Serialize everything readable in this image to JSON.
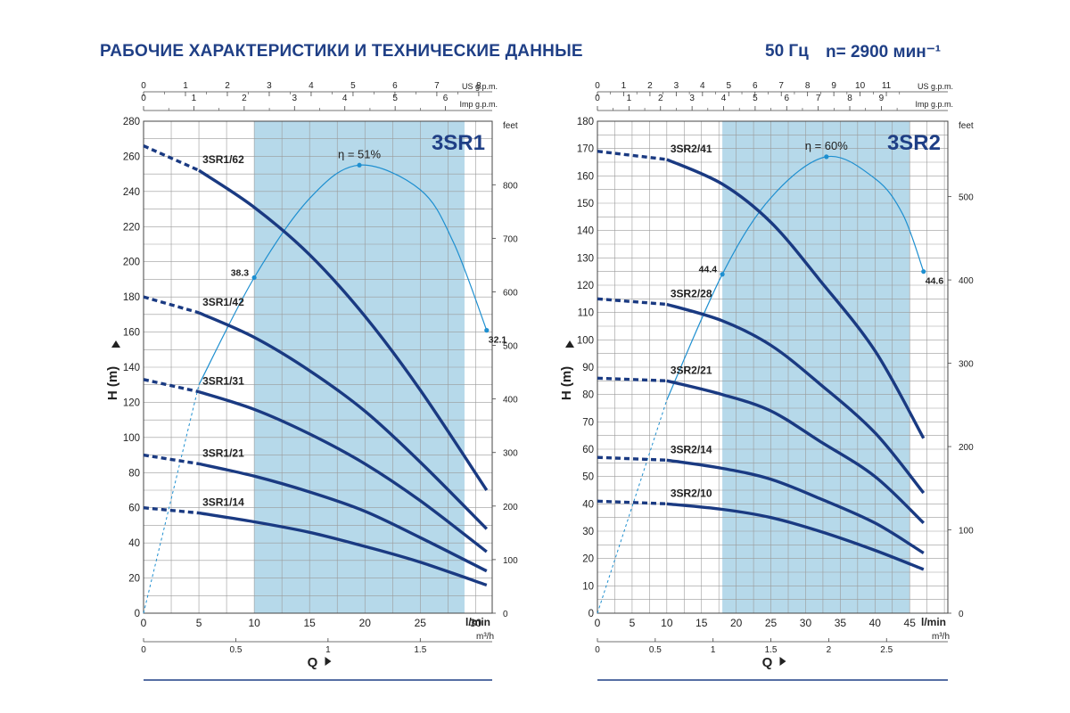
{
  "header": {
    "title": "РАБОЧИЕ ХАРАКТЕРИСТИКИ И ТЕХНИЧЕСКИЕ ДАННЫЕ",
    "frequency": "50 Гц",
    "speed": "n= 2900 мин⁻¹"
  },
  "colors": {
    "curve": "#1a3a82",
    "efficiency": "#1e8fd0",
    "band": "#b6d9ea",
    "grid": "#9a9a9a",
    "text": "#1f3f86"
  },
  "chart_data": [
    {
      "type": "line",
      "title": "3SR1",
      "ylabel": "H (m)",
      "xlabel": "Q",
      "x_unit": "l/min",
      "x2_unit": "m³/h",
      "top_unit_us": "US g.p.m.",
      "top_unit_imp": "Imp g.p.m.",
      "right_unit": "feet",
      "xlim": [
        0,
        31.5
      ],
      "ylim": [
        0,
        280
      ],
      "x_ticks": [
        0,
        5,
        10,
        15,
        20,
        25,
        30
      ],
      "y_ticks": [
        0,
        20,
        40,
        60,
        80,
        100,
        120,
        140,
        160,
        180,
        200,
        220,
        240,
        260,
        280
      ],
      "m3h_ticks": [
        "0",
        "0.5",
        "1",
        "1.5"
      ],
      "m3h_values": [
        0,
        0.5,
        1,
        1.5
      ],
      "us_ticks": [
        "0",
        "1",
        "2",
        "3",
        "4",
        "5",
        "6",
        "7",
        "8"
      ],
      "us_values": [
        0,
        1,
        2,
        3,
        4,
        5,
        6,
        7,
        8
      ],
      "imp_ticks": [
        "0",
        "1",
        "2",
        "3",
        "4",
        "5",
        "6"
      ],
      "imp_values": [
        0,
        1,
        2,
        3,
        4,
        5,
        6
      ],
      "feet_ticks": [
        "0",
        "100",
        "200",
        "300",
        "400",
        "500",
        "600",
        "700",
        "800"
      ],
      "feet_values": [
        0,
        100,
        200,
        300,
        400,
        500,
        600,
        700,
        800
      ],
      "recommended_range": [
        10,
        29
      ],
      "grid": true,
      "series": [
        {
          "name": "3SR1/62",
          "dash_end": 5,
          "x": [
            0,
            5,
            10,
            15,
            20,
            25,
            31
          ],
          "y": [
            266,
            252,
            231,
            204,
            169,
            127,
            70
          ]
        },
        {
          "name": "3SR1/42",
          "dash_end": 5,
          "x": [
            0,
            5,
            10,
            15,
            20,
            25,
            31
          ],
          "y": [
            180,
            171,
            157,
            138,
            115,
            86,
            48
          ]
        },
        {
          "name": "3SR1/31",
          "dash_end": 5,
          "x": [
            0,
            5,
            10,
            15,
            20,
            25,
            31
          ],
          "y": [
            133,
            126,
            116,
            102,
            85,
            64,
            35
          ]
        },
        {
          "name": "3SR1/21",
          "dash_end": 5,
          "x": [
            0,
            5,
            10,
            15,
            20,
            25,
            31
          ],
          "y": [
            90,
            85,
            78,
            69,
            58,
            43,
            24
          ]
        },
        {
          "name": "3SR1/14",
          "dash_end": 5,
          "x": [
            0,
            5,
            10,
            15,
            20,
            25,
            31
          ],
          "y": [
            60,
            57,
            52,
            46,
            38,
            29,
            16
          ]
        }
      ],
      "efficiency": {
        "label": "η = 51%",
        "peak_label_x": 19.5,
        "dashed_until": 5,
        "x": [
          0,
          5,
          10,
          15,
          19.5,
          25,
          28,
          31
        ],
        "y": [
          0,
          130,
          191,
          236,
          255,
          241,
          211,
          161
        ],
        "markers": [
          {
            "x": 10,
            "y": 191,
            "label": "38.3",
            "side": "left"
          },
          {
            "x": 19.5,
            "y": 255,
            "label": ""
          },
          {
            "x": 31,
            "y": 161,
            "label": "32.1",
            "side": "right"
          }
        ]
      }
    },
    {
      "type": "line",
      "title": "3SR2",
      "ylabel": "H (m)",
      "xlabel": "Q",
      "x_unit": "l/min",
      "x2_unit": "m³/h",
      "top_unit_us": "US g.p.m.",
      "top_unit_imp": "Imp g.p.m.",
      "right_unit": "feet",
      "xlim": [
        0,
        50.5
      ],
      "ylim": [
        0,
        180
      ],
      "x_ticks": [
        0,
        5,
        10,
        15,
        20,
        25,
        30,
        35,
        40,
        45
      ],
      "y_ticks": [
        0,
        10,
        20,
        30,
        40,
        50,
        60,
        70,
        80,
        90,
        100,
        110,
        120,
        130,
        140,
        150,
        160,
        170,
        180
      ],
      "m3h_ticks": [
        "0",
        "0.5",
        "1",
        "1.5",
        "2",
        "2.5"
      ],
      "m3h_values": [
        0,
        0.5,
        1,
        1.5,
        2,
        2.5
      ],
      "us_ticks": [
        "0",
        "1",
        "2",
        "3",
        "4",
        "5",
        "6",
        "7",
        "8",
        "9",
        "10",
        "11"
      ],
      "us_values": [
        0,
        1,
        2,
        3,
        4,
        5,
        6,
        7,
        8,
        9,
        10,
        11
      ],
      "imp_ticks": [
        "0",
        "1",
        "2",
        "3",
        "4",
        "5",
        "6",
        "7",
        "8",
        "9"
      ],
      "imp_values": [
        0,
        1,
        2,
        3,
        4,
        5,
        6,
        7,
        8,
        9
      ],
      "feet_ticks": [
        "0",
        "100",
        "200",
        "300",
        "400",
        "500"
      ],
      "feet_values": [
        0,
        100,
        200,
        300,
        400,
        500
      ],
      "recommended_range": [
        18,
        45
      ],
      "grid": true,
      "series": [
        {
          "name": "3SR2/41",
          "dash_end": 10,
          "x": [
            0,
            10,
            18,
            25,
            32,
            40,
            47
          ],
          "y": [
            169,
            166,
            157,
            143,
            122,
            96,
            64
          ]
        },
        {
          "name": "3SR2/28",
          "dash_end": 10,
          "x": [
            0,
            10,
            18,
            25,
            32,
            40,
            47
          ],
          "y": [
            115,
            113,
            107,
            98,
            84,
            66,
            44
          ]
        },
        {
          "name": "3SR2/21",
          "dash_end": 10,
          "x": [
            0,
            10,
            18,
            25,
            32,
            40,
            47
          ],
          "y": [
            86,
            85,
            80,
            74,
            63,
            50,
            33
          ]
        },
        {
          "name": "3SR2/14",
          "dash_end": 10,
          "x": [
            0,
            10,
            18,
            25,
            32,
            40,
            47
          ],
          "y": [
            57,
            56,
            53,
            49,
            42,
            33,
            22
          ]
        },
        {
          "name": "3SR2/10",
          "dash_end": 10,
          "x": [
            0,
            10,
            18,
            25,
            32,
            40,
            47
          ],
          "y": [
            41,
            40,
            38,
            35,
            30,
            23,
            16
          ]
        }
      ],
      "efficiency": {
        "label": "η = 60%",
        "peak_label_x": 33,
        "dashed_until": 10,
        "x": [
          0,
          10,
          18,
          25,
          33,
          40,
          44,
          47
        ],
        "y": [
          0,
          78,
          124,
          152,
          167,
          159,
          146,
          125
        ],
        "markers": [
          {
            "x": 18,
            "y": 124,
            "label": "44.4",
            "side": "left"
          },
          {
            "x": 33,
            "y": 167,
            "label": ""
          },
          {
            "x": 47,
            "y": 125,
            "label": "44.6",
            "side": "right"
          }
        ]
      }
    }
  ]
}
